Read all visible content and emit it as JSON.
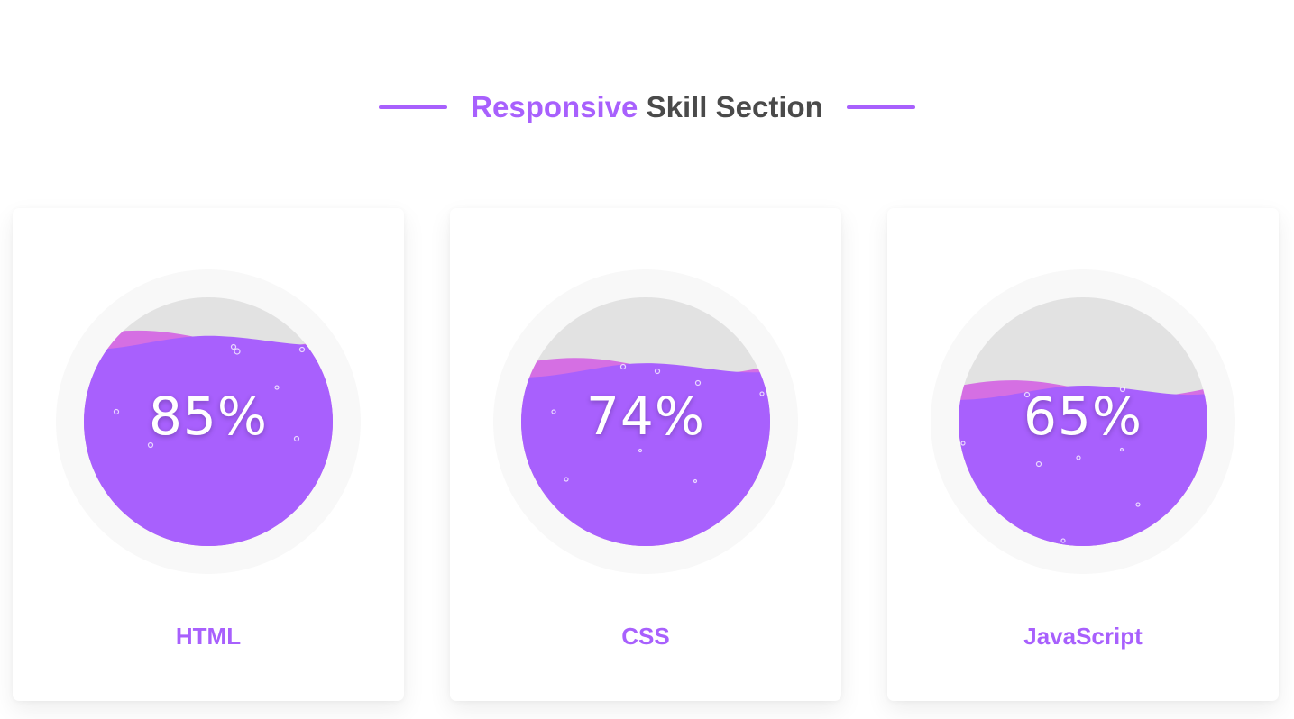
{
  "heading": {
    "accent_word": "Responsive",
    "rest": "Skill Section"
  },
  "colors": {
    "accent": "#a860fd",
    "wave_secondary": "#d56fe3",
    "empty": "#e2e2e2",
    "ring": "#f8f8f8",
    "heading_text": "#4a4a4a"
  },
  "skills": [
    {
      "name": "HTML",
      "percent_label": "85%",
      "level": 0.85
    },
    {
      "name": "CSS",
      "percent_label": "74%",
      "level": 0.74
    },
    {
      "name": "JavaScript",
      "percent_label": "65%",
      "level": 0.65
    }
  ]
}
